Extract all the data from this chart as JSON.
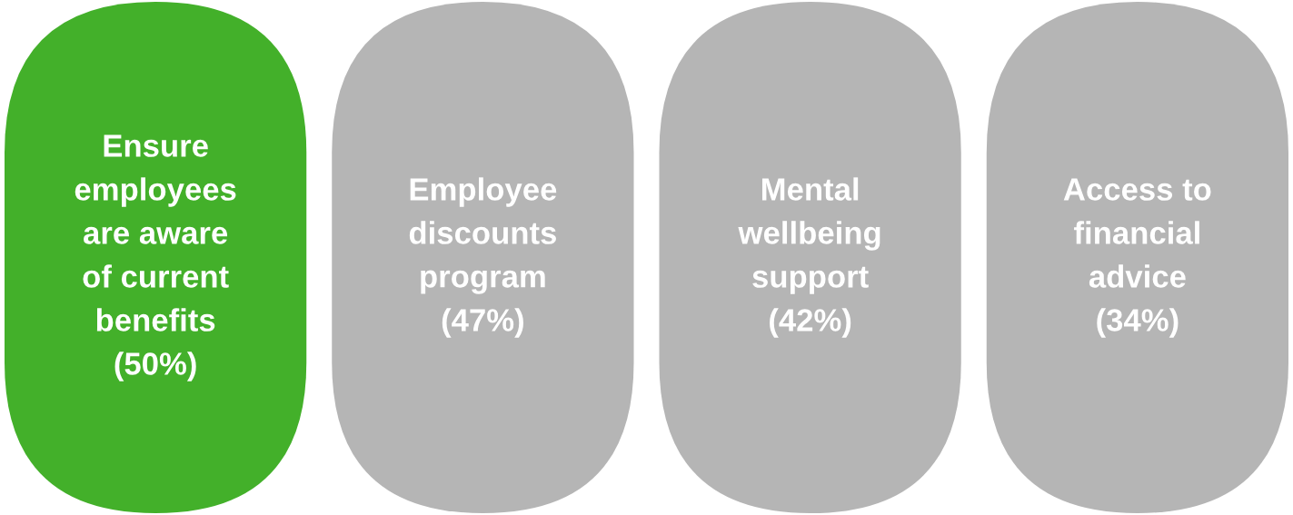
{
  "chart_data": {
    "type": "other",
    "categories": [
      "Ensure employees are aware of current benefits",
      "Employee discounts program",
      "Mental wellbeing support",
      "Access to financial advice"
    ],
    "values": [
      50,
      47,
      42,
      34
    ],
    "value_labels": [
      "(50%)",
      "(47%)",
      "(42%)",
      "(34%)"
    ],
    "colors": [
      "#43b02a",
      "#b5b5b5",
      "#b5b5b5",
      "#b5b5b5"
    ]
  }
}
